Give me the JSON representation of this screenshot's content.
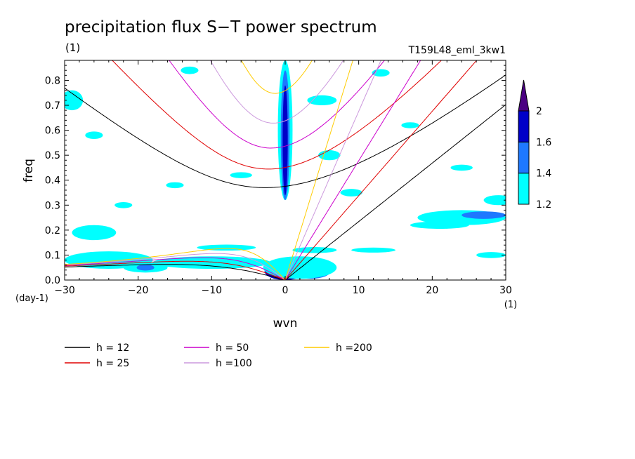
{
  "chart_data": {
    "type": "heatmap",
    "title": "precipitation flux S−T power spectrum",
    "subtitle_left": "(1)",
    "subtitle_right": "T159L48_eml_3kw1",
    "xlabel": "wvn",
    "ylabel": "freq",
    "x_unit": "(1)",
    "y_unit": "(day-1)",
    "xlim": [
      -30,
      30
    ],
    "ylim": [
      0,
      0.88
    ],
    "x_ticks": [
      -30,
      -20,
      -10,
      0,
      10,
      20,
      30
    ],
    "y_ticks": [
      0.0,
      0.1,
      0.2,
      0.3,
      0.4,
      0.5,
      0.6,
      0.7,
      0.8
    ],
    "colorbar": {
      "levels": [
        1.2,
        1.4,
        1.6,
        2
      ],
      "colors": [
        "#00ffff",
        "#1e78ff",
        "#0000c8",
        "#4b0082"
      ]
    },
    "dispersion_curves": [
      {
        "name": "h = 12",
        "h": 12,
        "color": "#000000"
      },
      {
        "name": "h = 25",
        "h": 25,
        "color": "#e00000"
      },
      {
        "name": "h = 50",
        "h": 50,
        "color": "#cc00cc"
      },
      {
        "name": "h =100",
        "h": 100,
        "color": "#cc99dd"
      },
      {
        "name": "h =200",
        "h": 200,
        "color": "#ffcc00"
      }
    ],
    "regions": [
      {
        "level": 1.6,
        "x": 0,
        "y": 0.035,
        "rx": 2.8,
        "ry": 0.035
      },
      {
        "level": 2,
        "x": 0,
        "y": 0.025,
        "rx": 1.8,
        "ry": 0.022
      },
      {
        "level": 1.4,
        "x": 3.5,
        "y": 0.04,
        "rx": 2.8,
        "ry": 0.035
      },
      {
        "level": 1.2,
        "x": 2,
        "y": 0.05,
        "rx": 5,
        "ry": 0.045
      },
      {
        "level": 1.2,
        "x": 0,
        "y": 0.6,
        "rx": 1,
        "ry": 0.28
      },
      {
        "level": 1.4,
        "x": 0,
        "y": 0.58,
        "rx": 0.6,
        "ry": 0.26
      },
      {
        "level": 1.6,
        "x": 0,
        "y": 0.56,
        "rx": 0.35,
        "ry": 0.22
      },
      {
        "level": 1.2,
        "x": -24,
        "y": 0.08,
        "rx": 6,
        "ry": 0.035
      },
      {
        "level": 1.2,
        "x": -10,
        "y": 0.07,
        "rx": 8,
        "ry": 0.025
      },
      {
        "level": 1.2,
        "x": -19,
        "y": 0.05,
        "rx": 3,
        "ry": 0.02
      },
      {
        "level": 1.4,
        "x": -19,
        "y": 0.05,
        "rx": 1.2,
        "ry": 0.012
      },
      {
        "level": 1.2,
        "x": 24,
        "y": 0.25,
        "rx": 6,
        "ry": 0.03
      },
      {
        "level": 1.4,
        "x": 27,
        "y": 0.26,
        "rx": 3,
        "ry": 0.015
      },
      {
        "level": 1.2,
        "x": 21,
        "y": 0.22,
        "rx": 4,
        "ry": 0.015
      },
      {
        "level": 1.2,
        "x": 29,
        "y": 0.32,
        "rx": 2,
        "ry": 0.02
      },
      {
        "level": 1.2,
        "x": -26,
        "y": 0.19,
        "rx": 3,
        "ry": 0.03
      },
      {
        "level": 1.2,
        "x": -8,
        "y": 0.13,
        "rx": 4,
        "ry": 0.012
      },
      {
        "level": 1.2,
        "x": -29,
        "y": 0.72,
        "rx": 1.5,
        "ry": 0.04
      },
      {
        "level": 1.2,
        "x": 5,
        "y": 0.72,
        "rx": 2,
        "ry": 0.02
      },
      {
        "level": 1.2,
        "x": 6,
        "y": 0.5,
        "rx": 1.5,
        "ry": 0.02
      },
      {
        "level": 1.2,
        "x": 9,
        "y": 0.35,
        "rx": 1.5,
        "ry": 0.015
      },
      {
        "level": 1.2,
        "x": -6,
        "y": 0.42,
        "rx": 1.5,
        "ry": 0.012
      },
      {
        "level": 1.2,
        "x": -15,
        "y": 0.38,
        "rx": 1.2,
        "ry": 0.012
      },
      {
        "level": 1.2,
        "x": -13,
        "y": 0.84,
        "rx": 1.2,
        "ry": 0.015
      },
      {
        "level": 1.2,
        "x": 13,
        "y": 0.83,
        "rx": 1.2,
        "ry": 0.015
      },
      {
        "level": 1.2,
        "x": 17,
        "y": 0.62,
        "rx": 1.2,
        "ry": 0.012
      },
      {
        "level": 1.2,
        "x": 24,
        "y": 0.45,
        "rx": 1.5,
        "ry": 0.012
      },
      {
        "level": 1.2,
        "x": -22,
        "y": 0.3,
        "rx": 1.2,
        "ry": 0.012
      },
      {
        "level": 1.2,
        "x": 12,
        "y": 0.12,
        "rx": 3,
        "ry": 0.01
      },
      {
        "level": 1.2,
        "x": 28,
        "y": 0.1,
        "rx": 2,
        "ry": 0.012
      },
      {
        "level": 1.2,
        "x": -26,
        "y": 0.58,
        "rx": 1.2,
        "ry": 0.015
      },
      {
        "level": 1.2,
        "x": 4,
        "y": 0.12,
        "rx": 3,
        "ry": 0.012
      }
    ]
  }
}
